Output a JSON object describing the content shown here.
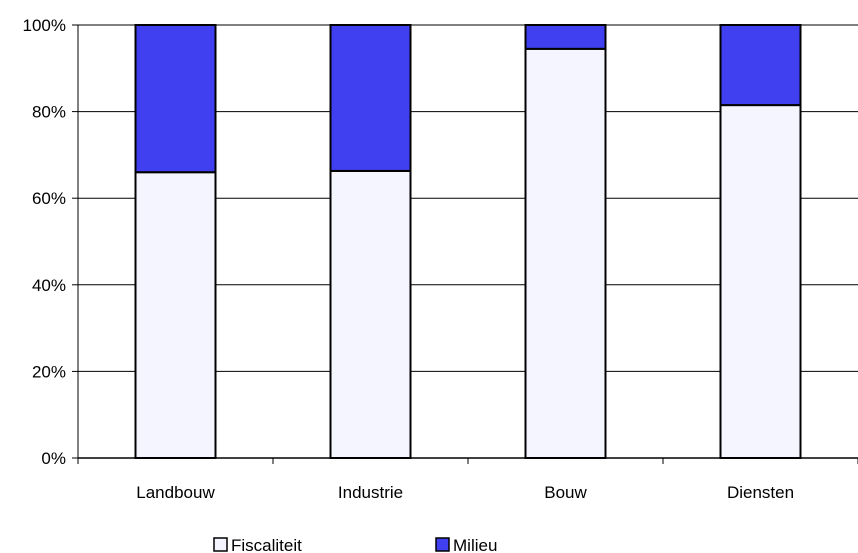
{
  "chart_data": {
    "type": "bar",
    "stacked": true,
    "percent_stacked": true,
    "title": "",
    "xlabel": "",
    "ylabel": "",
    "ylim": [
      0,
      100
    ],
    "y_ticks": [
      "0%",
      "20%",
      "40%",
      "60%",
      "80%",
      "100%"
    ],
    "y_tick_values": [
      0,
      20,
      40,
      60,
      80,
      100
    ],
    "grid": true,
    "legend_position": "bottom",
    "categories": [
      "Landbouw",
      "Industrie",
      "Bouw",
      "Diensten"
    ],
    "series": [
      {
        "name": "Fiscaliteit",
        "color": "#f5f5ff",
        "values": [
          66,
          66.3,
          94.5,
          81.5
        ]
      },
      {
        "name": "Milieu",
        "color": "#4040f0",
        "values": [
          34,
          33.7,
          5.5,
          18.5
        ]
      }
    ]
  }
}
